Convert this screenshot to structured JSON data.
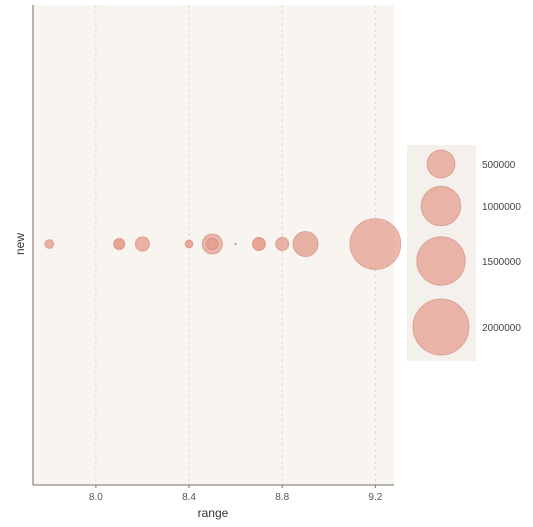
{
  "colors": {
    "panel_background": "#f8f5f0",
    "legend_background": "#f4f1ec",
    "grid": "#e2dcd4",
    "axis_line": "#7a6e66",
    "bubble_fill": "#e49a8a",
    "bubble_stroke": "#c97a6a"
  },
  "chart_data": {
    "type": "scatter",
    "title": "",
    "xlabel": "range",
    "ylabel": "new",
    "xlim": [
      7.73,
      9.28
    ],
    "x_ticks": [
      8.0,
      8.4,
      8.8,
      9.2
    ],
    "x_tick_labels": [
      "8.0",
      "8.4",
      "8.8",
      "9.2"
    ],
    "grid": "vertical dashed lines at x ticks",
    "y_ticks": [],
    "size_variable": "bubble area",
    "points": [
      {
        "x": 7.8,
        "size": 50000,
        "opacity": 0.75
      },
      {
        "x": 8.1,
        "size": 80000,
        "opacity": 0.9
      },
      {
        "x": 8.2,
        "size": 130000,
        "opacity": 0.75
      },
      {
        "x": 8.4,
        "size": 40000,
        "opacity": 0.85
      },
      {
        "x": 8.5,
        "size": 260000,
        "opacity": 0.7
      },
      {
        "x": 8.5,
        "size": 80000,
        "opacity": 0.7
      },
      {
        "x": 8.6,
        "size": 1000,
        "opacity": 0.9
      },
      {
        "x": 8.7,
        "size": 110000,
        "opacity": 0.9
      },
      {
        "x": 8.8,
        "size": 110000,
        "opacity": 0.75
      },
      {
        "x": 8.9,
        "size": 400000,
        "opacity": 0.75
      },
      {
        "x": 9.2,
        "size": 1650000,
        "opacity": 0.7
      }
    ],
    "legend": {
      "placement": "right",
      "entries": [
        {
          "label": "500000",
          "value": 500000
        },
        {
          "label": "1000000",
          "value": 1000000
        },
        {
          "label": "1500000",
          "value": 1500000
        },
        {
          "label": "2000000",
          "value": 2000000
        }
      ]
    }
  }
}
